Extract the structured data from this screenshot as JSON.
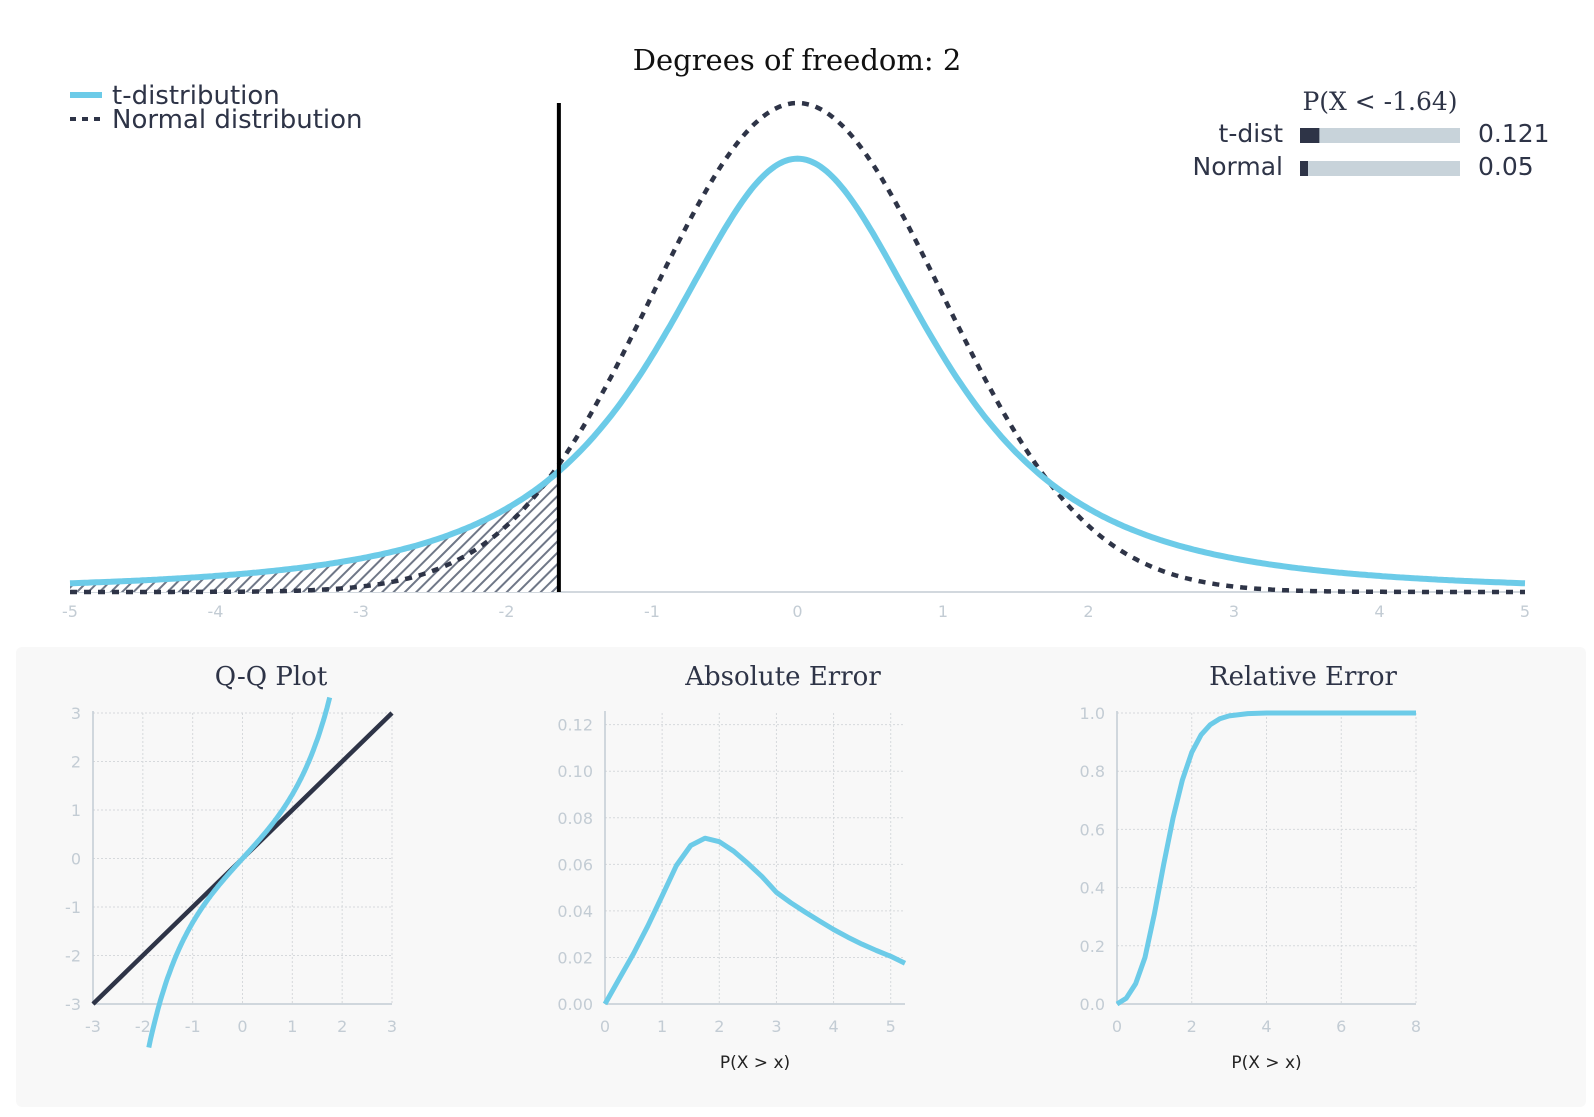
{
  "main_chart": {
    "title": "Degrees of freedom: 2",
    "legend": [
      {
        "label": "t-distribution",
        "style": "solid",
        "color": "#6ccbe8"
      },
      {
        "label": "Normal distribution",
        "style": "dashed",
        "color": "#2e3447"
      }
    ],
    "prob_box": {
      "title": "P(X < -1.64)",
      "rows": [
        {
          "label": "t-dist",
          "value": "0.121",
          "fraction": 0.121
        },
        {
          "label": "Normal",
          "value": "0.05",
          "fraction": 0.05
        }
      ]
    }
  },
  "colors": {
    "t_curve": "#6ccbe8",
    "normal_curve": "#2e3447",
    "bar_fill": "#2e3447",
    "bar_track": "#c8d3da",
    "axis": "#c3ccd4",
    "cutoff_line": "#000000"
  },
  "chart_data": [
    {
      "type": "line",
      "title": "Degrees of freedom: 2",
      "xlabel": "",
      "ylabel": "",
      "xlim": [
        -5,
        5
      ],
      "xticks": [
        "-5",
        "-4",
        "-3",
        "-2",
        "-1",
        "0",
        "1",
        "2",
        "3",
        "4",
        "5"
      ],
      "cutoff_x": -1.64,
      "shaded_region": [
        -5,
        -1.64
      ],
      "series": [
        {
          "name": "t-distribution",
          "x": [
            -5,
            -4,
            -3,
            -2,
            -1.64,
            -1,
            0,
            1,
            1.64,
            2,
            3,
            4,
            5
          ],
          "values": [
            0.0071,
            0.0131,
            0.0275,
            0.068,
            0.0987,
            0.1925,
            0.3536,
            0.1925,
            0.0987,
            0.068,
            0.0275,
            0.0131,
            0.0071
          ]
        },
        {
          "name": "Normal distribution",
          "x": [
            -5,
            -4,
            -3,
            -2,
            -1.64,
            -1,
            0,
            1,
            1.64,
            2,
            3,
            4,
            5
          ],
          "values": [
            0.0,
            0.0001,
            0.0044,
            0.054,
            0.104,
            0.242,
            0.3989,
            0.242,
            0.104,
            0.054,
            0.0044,
            0.0001,
            0.0
          ]
        }
      ]
    },
    {
      "type": "line",
      "title": "Q-Q Plot",
      "xlabel": "",
      "ylabel": "",
      "xlim": [
        -3,
        3
      ],
      "ylim": [
        -3,
        3
      ],
      "xticks": [
        "-3",
        "-2",
        "-1",
        "0",
        "1",
        "2",
        "3"
      ],
      "yticks": [
        "-3",
        "-2",
        "-1",
        "0",
        "1",
        "2",
        "3"
      ],
      "series": [
        {
          "name": "",
          "x": [
            -1.9,
            -1.5,
            -1,
            -0.5,
            0,
            0.5,
            1,
            1.5,
            1.76
          ],
          "values": [
            -4.35,
            -2.4,
            -1.15,
            -0.53,
            0,
            0.53,
            1.15,
            2.4,
            3.35
          ]
        },
        {
          "name": "",
          "x": [
            -3,
            3
          ],
          "values": [
            -3,
            3
          ]
        }
      ]
    },
    {
      "type": "line",
      "title": "Absolute Error",
      "xlabel": "P(X > x)",
      "ylabel": "",
      "xlim": [
        0,
        5.25
      ],
      "ylim": [
        0,
        0.125
      ],
      "xticks": [
        "0",
        "1",
        "2",
        "3",
        "4",
        "5"
      ],
      "yticks": [
        "0.00",
        "0.02",
        "0.04",
        "0.06",
        "0.08",
        "0.10",
        "0.12"
      ],
      "series": [
        {
          "name": "",
          "x": [
            0,
            0.25,
            0.5,
            0.75,
            1,
            1.25,
            1.5,
            1.75,
            2,
            2.25,
            2.5,
            2.75,
            3,
            3.25,
            3.5,
            3.75,
            4,
            4.25,
            4.5,
            4.75,
            5,
            5.25
          ],
          "values": [
            0,
            0.0109,
            0.0217,
            0.0336,
            0.0464,
            0.0595,
            0.0681,
            0.0712,
            0.0697,
            0.0657,
            0.0604,
            0.0547,
            0.048,
            0.0435,
            0.0395,
            0.0357,
            0.032,
            0.0287,
            0.0257,
            0.023,
            0.0205,
            0.0175
          ]
        }
      ]
    },
    {
      "type": "line",
      "title": "Relative Error",
      "xlabel": "P(X > x)",
      "ylabel": "",
      "xlim": [
        0,
        8
      ],
      "ylim": [
        0,
        1
      ],
      "xticks": [
        "0",
        "2",
        "4",
        "6",
        "8"
      ],
      "yticks": [
        "0.0",
        "0.2",
        "0.4",
        "0.6",
        "0.8",
        "1.0"
      ],
      "series": [
        {
          "name": "",
          "x": [
            0,
            0.25,
            0.5,
            0.75,
            1,
            1.25,
            1.5,
            1.75,
            2,
            2.25,
            2.5,
            2.75,
            3,
            3.5,
            4,
            5,
            6,
            7,
            8
          ],
          "values": [
            0,
            0.02,
            0.07,
            0.16,
            0.31,
            0.48,
            0.64,
            0.77,
            0.865,
            0.925,
            0.96,
            0.98,
            0.99,
            0.998,
            1.0,
            1.0,
            1.0,
            1.0,
            1.0
          ]
        }
      ]
    }
  ]
}
